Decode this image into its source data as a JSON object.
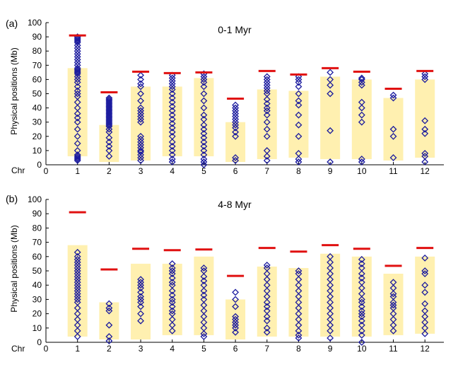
{
  "chart_data": [
    {
      "panel_label": "(a)",
      "title": "0-1 Myr",
      "type": "scatter",
      "ylabel": "Physical positions (Mb)",
      "xlabel": "Chr",
      "ylim": [
        0,
        100
      ],
      "yticks": [
        0,
        10,
        20,
        30,
        40,
        50,
        60,
        70,
        80,
        90,
        100
      ],
      "xlim": [
        0,
        12.6
      ],
      "xticks": [
        0,
        1,
        2,
        3,
        4,
        5,
        6,
        7,
        8,
        9,
        10,
        11,
        12
      ],
      "colors": {
        "points": "#1a1a9e",
        "max_line": "#e01010",
        "band": "#fff0b0"
      },
      "chromosome_length_mb": [
        91,
        51,
        65.5,
        64.5,
        65,
        46.5,
        66,
        63.5,
        68,
        65.5,
        53.5,
        66
      ],
      "bands": [
        [
          6,
          68
        ],
        [
          2,
          28
        ],
        [
          3,
          55
        ],
        [
          6,
          55
        ],
        [
          6,
          61
        ],
        [
          2,
          30
        ],
        [
          4,
          53
        ],
        [
          5,
          52
        ],
        [
          4,
          62
        ],
        [
          4,
          60
        ],
        [
          3,
          47
        ],
        [
          5,
          60
        ]
      ],
      "points": [
        {
          "chr": 1,
          "y": [
            3,
            4,
            5,
            6,
            7,
            10,
            15,
            20,
            25,
            30,
            33,
            36,
            40,
            44,
            48,
            50,
            52,
            55,
            58,
            60,
            62,
            64,
            65,
            66,
            67,
            68,
            70,
            72,
            74,
            76,
            78,
            80,
            82,
            84,
            86,
            87,
            88,
            89,
            90
          ]
        },
        {
          "chr": 2,
          "y": [
            6,
            10,
            13,
            16,
            19,
            23,
            25,
            27,
            28,
            29,
            30,
            31,
            32,
            33,
            34,
            35,
            36,
            37,
            38,
            39,
            40,
            41,
            42,
            43,
            44,
            45,
            46,
            47
          ]
        },
        {
          "chr": 3,
          "y": [
            3,
            5,
            7,
            9,
            10,
            12,
            14,
            16,
            18,
            20,
            30,
            32,
            34,
            36,
            38,
            40,
            45,
            50,
            55,
            57,
            60,
            63
          ]
        },
        {
          "chr": 4,
          "y": [
            2,
            4,
            7,
            10,
            13,
            16,
            20,
            23,
            26,
            29,
            32,
            35,
            38,
            41,
            44,
            47,
            50,
            53,
            55,
            57,
            59,
            61,
            63
          ]
        },
        {
          "chr": 5,
          "y": [
            0,
            2,
            4,
            7,
            10,
            13,
            16,
            19,
            22,
            25,
            28,
            32,
            35,
            40,
            45,
            50,
            55,
            58,
            60,
            62,
            64
          ]
        },
        {
          "chr": 6,
          "y": [
            3,
            5,
            20,
            23,
            26,
            28,
            30,
            32,
            34,
            36,
            38,
            40,
            42
          ]
        },
        {
          "chr": 7,
          "y": [
            3,
            6,
            10,
            20,
            25,
            30,
            35,
            38,
            40,
            43,
            46,
            50,
            52,
            54,
            56,
            58,
            60,
            62
          ]
        },
        {
          "chr": 8,
          "y": [
            2,
            4,
            8,
            20,
            28,
            35,
            42,
            45,
            50,
            55,
            58,
            60,
            62
          ]
        },
        {
          "chr": 9,
          "y": [
            2,
            24,
            50,
            56,
            60,
            65
          ]
        },
        {
          "chr": 10,
          "y": [
            2,
            4,
            30,
            35,
            40,
            44,
            56,
            58,
            60,
            61
          ]
        },
        {
          "chr": 11,
          "y": [
            5,
            20,
            25,
            47,
            49
          ]
        },
        {
          "chr": 12,
          "y": [
            2,
            6,
            8,
            22,
            25,
            31,
            60,
            62,
            64
          ]
        }
      ]
    },
    {
      "panel_label": "(b)",
      "title": "4-8 Myr",
      "type": "scatter",
      "ylabel": "Physical positions (Mb)",
      "xlabel": "Chr",
      "ylim": [
        0,
        100
      ],
      "yticks": [
        0,
        10,
        20,
        30,
        40,
        50,
        60,
        70,
        80,
        90,
        100
      ],
      "xlim": [
        0,
        12.6
      ],
      "xticks": [
        0,
        1,
        2,
        3,
        4,
        5,
        6,
        7,
        8,
        9,
        10,
        11,
        12
      ],
      "colors": {
        "points": "#1a1a9e",
        "max_line": "#e01010",
        "band": "#fff0b0"
      },
      "chromosome_length_mb": [
        91,
        51,
        65.5,
        64.5,
        65,
        46.5,
        66,
        63.5,
        68,
        65.5,
        53.5,
        66
      ],
      "bands": [
        [
          4,
          68
        ],
        [
          2,
          28
        ],
        [
          2,
          55
        ],
        [
          5,
          55
        ],
        [
          5,
          60
        ],
        [
          2,
          30
        ],
        [
          4,
          53
        ],
        [
          4,
          52
        ],
        [
          4,
          62
        ],
        [
          4,
          60
        ],
        [
          5,
          48
        ],
        [
          6,
          60
        ]
      ],
      "points": [
        {
          "chr": 1,
          "y": [
            4,
            8,
            12,
            16,
            20,
            24,
            28,
            30,
            32,
            34,
            36,
            38,
            40,
            42,
            44,
            46,
            48,
            50,
            52,
            54,
            56,
            58,
            60,
            63
          ]
        },
        {
          "chr": 2,
          "y": [
            1,
            4,
            12,
            22,
            24,
            27
          ]
        },
        {
          "chr": 3,
          "y": [
            15,
            20,
            25,
            28,
            30,
            32,
            35,
            38,
            40,
            42,
            44
          ]
        },
        {
          "chr": 4,
          "y": [
            8,
            12,
            16,
            20,
            22,
            25,
            28,
            30,
            33,
            36,
            40,
            42,
            45,
            48,
            50,
            52,
            55
          ]
        },
        {
          "chr": 5,
          "y": [
            4,
            6,
            10,
            14,
            18,
            22,
            26,
            30,
            33,
            36,
            40,
            43,
            46,
            50,
            52
          ]
        },
        {
          "chr": 6,
          "y": [
            7,
            10,
            12,
            14,
            16,
            18,
            25,
            30,
            35
          ]
        },
        {
          "chr": 7,
          "y": [
            7,
            10,
            15,
            18,
            22,
            25,
            28,
            32,
            36,
            40,
            44,
            48,
            52,
            54
          ]
        },
        {
          "chr": 8,
          "y": [
            3,
            5,
            8,
            12,
            16,
            20,
            24,
            28,
            32,
            36,
            40,
            44,
            48,
            50
          ]
        },
        {
          "chr": 9,
          "y": [
            3,
            8,
            12,
            16,
            20,
            24,
            28,
            32,
            36,
            40,
            44,
            48,
            52,
            56,
            60
          ]
        },
        {
          "chr": 10,
          "y": [
            0,
            5,
            8,
            12,
            15,
            18,
            20,
            22,
            25,
            28,
            30,
            34,
            38,
            42,
            45,
            48,
            52,
            55,
            58
          ]
        },
        {
          "chr": 11,
          "y": [
            8,
            12,
            16,
            20,
            24,
            26,
            28,
            32,
            34,
            38,
            42
          ]
        },
        {
          "chr": 12,
          "y": [
            6,
            10,
            14,
            18,
            22,
            27,
            35,
            40,
            48,
            50,
            59
          ]
        }
      ]
    }
  ]
}
